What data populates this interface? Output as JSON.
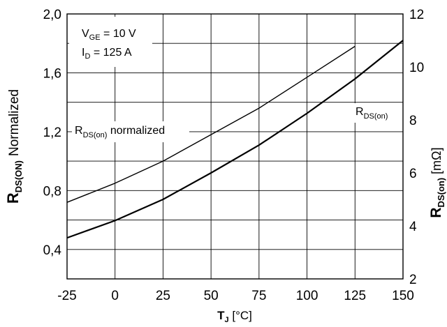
{
  "chart_data": {
    "type": "line",
    "x_axis": {
      "label_main": "T",
      "label_sub": "J",
      "label_unit": " [°C]",
      "range": [
        -25,
        150
      ],
      "ticks": [
        -25,
        0,
        25,
        50,
        75,
        100,
        125,
        150
      ],
      "tick_labels": [
        "-25",
        "0",
        "25",
        "50",
        "75",
        "100",
        "125",
        "150"
      ]
    },
    "y_axis_left": {
      "label_main": "R",
      "label_sub": "DS(ON)",
      "label_rest": "Normalized",
      "range": [
        0.2,
        2.0
      ],
      "ticks": [
        0.4,
        0.8,
        1.2,
        1.6,
        2.0
      ],
      "tick_labels": [
        "0,4",
        "0,8",
        "1,2",
        "1,6",
        "2,0"
      ],
      "grid_lines": [
        0.2,
        0.4,
        0.6,
        0.8,
        1.0,
        1.2,
        1.4,
        1.6,
        1.8,
        2.0
      ]
    },
    "y_axis_right": {
      "label_main": "R",
      "label_sub": "DS(on)",
      "label_unit": " [mΩ]",
      "range": [
        2,
        12
      ],
      "ticks": [
        2,
        4,
        6,
        8,
        10,
        12
      ],
      "tick_labels": [
        "2",
        "4",
        "6",
        "8",
        "10",
        "12"
      ]
    },
    "grid": true,
    "conditions": {
      "line1_main": "V",
      "line1_sub": "GE",
      "line1_rest": " = 10 V",
      "line2_main": "I",
      "line2_sub": "D",
      "line2_rest": " = 125 A"
    },
    "series": [
      {
        "name": "RDS(on) normalized",
        "label_main": "R",
        "label_sub": "DS(on)",
        "label_rest": " normalized",
        "axis": "left",
        "x": [
          -25,
          0,
          25,
          50,
          75,
          100,
          125
        ],
        "y": [
          0.72,
          0.85,
          1.0,
          1.18,
          1.36,
          1.57,
          1.78
        ]
      },
      {
        "name": "RDS(on)",
        "label_main": "R",
        "label_sub": "DS(on)",
        "label_rest": "",
        "axis": "right",
        "x": [
          -25,
          0,
          25,
          50,
          75,
          100,
          125,
          150
        ],
        "y": [
          3.55,
          4.2,
          5.0,
          6.0,
          7.05,
          8.25,
          9.55,
          11.0
        ]
      }
    ]
  }
}
